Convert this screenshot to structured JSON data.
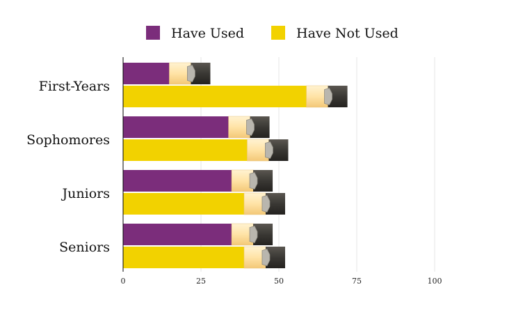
{
  "chart_data": {
    "type": "bar",
    "orientation": "horizontal",
    "categories": [
      "First-Years",
      "Sophomores",
      "Juniors",
      "Seniors"
    ],
    "series": [
      {
        "name": "Have Used",
        "color": "#7b2d7b",
        "values": [
          28,
          47,
          48,
          48
        ]
      },
      {
        "name": "Have Not Used",
        "color": "#f2d200",
        "values": [
          72,
          53,
          52,
          52
        ]
      }
    ],
    "xlim": [
      0,
      125
    ],
    "xticks": [
      0,
      25,
      50,
      75,
      100
    ],
    "grid": true,
    "legend": {
      "position": "top",
      "items": [
        "Have Used",
        "Have Not Used"
      ]
    },
    "title": "",
    "xlabel": "",
    "ylabel": "",
    "bar_style": "pencil"
  }
}
